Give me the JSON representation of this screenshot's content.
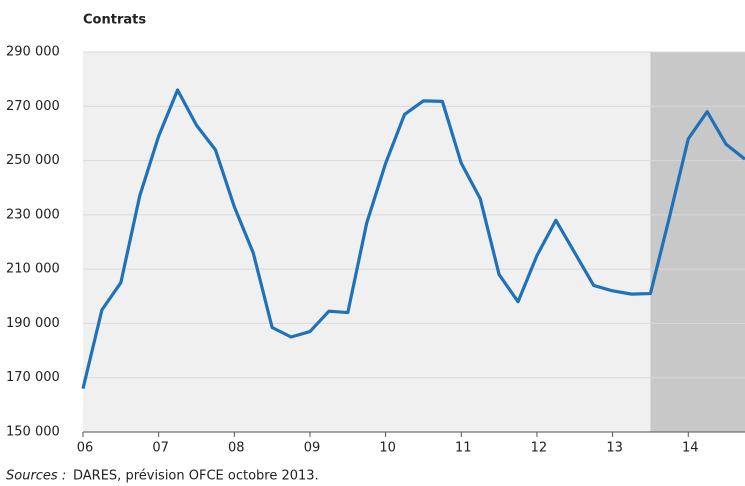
{
  "chart_data": {
    "type": "line",
    "y_label": "Contrats",
    "source_label": "Sources :",
    "source": "DARES, prévision OFCE octobre 2013.",
    "x": [
      2006,
      2006.25,
      2006.5,
      2006.75,
      2007,
      2007.25,
      2007.5,
      2007.75,
      2008,
      2008.25,
      2008.5,
      2008.75,
      2009,
      2009.25,
      2009.5,
      2009.75,
      2010,
      2010.25,
      2010.5,
      2010.75,
      2011,
      2011.25,
      2011.5,
      2011.75,
      2012,
      2012.25,
      2012.5,
      2012.75,
      2013,
      2013.25,
      2013.5,
      2013.75,
      2014,
      2014.25,
      2014.5,
      2014.75
    ],
    "series": [
      {
        "color": "#1f72b8",
        "values": [
          166000,
          195000,
          205000,
          237000,
          259000,
          276000,
          263000,
          254000,
          233000,
          216000,
          188500,
          185000,
          187000,
          194500,
          194000,
          227000,
          249000,
          267000,
          272000,
          271800,
          249000,
          236000,
          208000,
          198000,
          215000,
          228000,
          216000,
          204000,
          202000,
          200800,
          201000,
          229000,
          258000,
          268000,
          256000,
          250500
        ]
      }
    ],
    "xlim": [
      2006,
      2014.75
    ],
    "xticks": [
      {
        "value": 2006,
        "label": "06"
      },
      {
        "value": 2007,
        "label": "07"
      },
      {
        "value": 2008,
        "label": "08"
      },
      {
        "value": 2009,
        "label": "09"
      },
      {
        "value": 2010,
        "label": "10"
      },
      {
        "value": 2011,
        "label": "11"
      },
      {
        "value": 2012,
        "label": "12"
      },
      {
        "value": 2013,
        "label": "13"
      },
      {
        "value": 2014,
        "label": "14"
      }
    ],
    "ylim": [
      150000,
      290000
    ],
    "yticks": [
      {
        "value": 150000,
        "label": "150 000"
      },
      {
        "value": 170000,
        "label": "170 000"
      },
      {
        "value": 190000,
        "label": "190 000"
      },
      {
        "value": 210000,
        "label": "210 000"
      },
      {
        "value": 230000,
        "label": "230 000"
      },
      {
        "value": 250000,
        "label": "250 000"
      },
      {
        "value": 270000,
        "label": "270 000"
      },
      {
        "value": 290000,
        "label": "290 000"
      }
    ],
    "forecast_xlim": [
      2013.5,
      2014.75
    ],
    "grid": true
  }
}
